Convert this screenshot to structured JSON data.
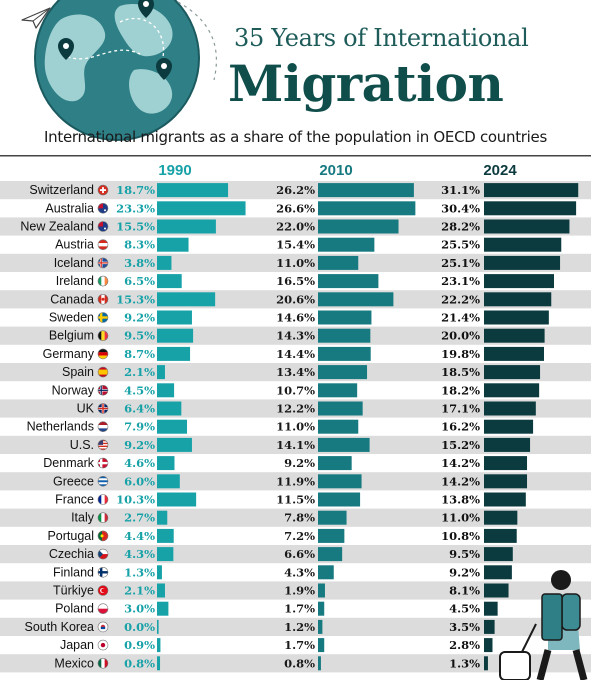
{
  "header": {
    "title_line1": "35 Years of International",
    "title_line2": "Migration",
    "subtitle": "International migrants as a share of the population in OECD countries"
  },
  "colors": {
    "c1990": "#17a2a8",
    "c2010": "#167a80",
    "c2024": "#0c3b3f",
    "row_alt": "#dcdcdc",
    "label": "#111111"
  },
  "chart_data": {
    "type": "bar",
    "title": "35 Years of International Migration",
    "subtitle": "International migrants as a share of the population in OECD countries",
    "unit": "%",
    "categories": [
      "Switzerland",
      "Australia",
      "New Zealand",
      "Austria",
      "Iceland",
      "Ireland",
      "Canada",
      "Sweden",
      "Belgium",
      "Germany",
      "Spain",
      "Norway",
      "UK",
      "Netherlands",
      "U.S.",
      "Denmark",
      "Greece",
      "France",
      "Italy",
      "Portugal",
      "Czechia",
      "Finland",
      "Türkiye",
      "Poland",
      "South Korea",
      "Japan",
      "Mexico"
    ],
    "series": [
      {
        "name": "1990",
        "values": [
          18.7,
          23.3,
          15.5,
          8.3,
          3.8,
          6.5,
          15.3,
          9.2,
          9.5,
          8.7,
          2.1,
          4.5,
          6.4,
          7.9,
          9.2,
          4.6,
          6.0,
          10.3,
          2.7,
          4.4,
          4.3,
          1.3,
          2.1,
          3.0,
          0.0,
          0.9,
          0.8
        ]
      },
      {
        "name": "2010",
        "values": [
          26.2,
          26.6,
          22.0,
          15.4,
          11.0,
          16.5,
          20.6,
          14.6,
          14.3,
          14.4,
          13.4,
          10.7,
          12.2,
          11.0,
          14.1,
          9.2,
          11.9,
          11.5,
          7.8,
          7.2,
          6.6,
          4.3,
          1.9,
          1.7,
          1.2,
          1.7,
          0.8
        ]
      },
      {
        "name": "2024",
        "values": [
          31.1,
          30.4,
          28.2,
          25.5,
          25.1,
          23.1,
          22.2,
          21.4,
          20.0,
          19.8,
          18.5,
          18.2,
          17.1,
          16.2,
          15.2,
          14.2,
          14.2,
          13.8,
          11.0,
          10.8,
          9.5,
          9.2,
          8.1,
          4.5,
          3.5,
          2.8,
          1.3
        ]
      }
    ],
    "flags": [
      "switzerland-flag-icon",
      "australia-flag-icon",
      "new-zealand-flag-icon",
      "austria-flag-icon",
      "iceland-flag-icon",
      "ireland-flag-icon",
      "canada-flag-icon",
      "sweden-flag-icon",
      "belgium-flag-icon",
      "germany-flag-icon",
      "spain-flag-icon",
      "norway-flag-icon",
      "uk-flag-icon",
      "netherlands-flag-icon",
      "us-flag-icon",
      "denmark-flag-icon",
      "greece-flag-icon",
      "france-flag-icon",
      "italy-flag-icon",
      "portugal-flag-icon",
      "czechia-flag-icon",
      "finland-flag-icon",
      "turkiye-flag-icon",
      "poland-flag-icon",
      "south-korea-flag-icon",
      "japan-flag-icon",
      "mexico-flag-icon"
    ]
  },
  "decor": {
    "globe": "globe-icon",
    "plane": "paper-plane-icon",
    "pins": "map-pin-icon",
    "traveler": "traveler-with-suitcase-icon"
  }
}
